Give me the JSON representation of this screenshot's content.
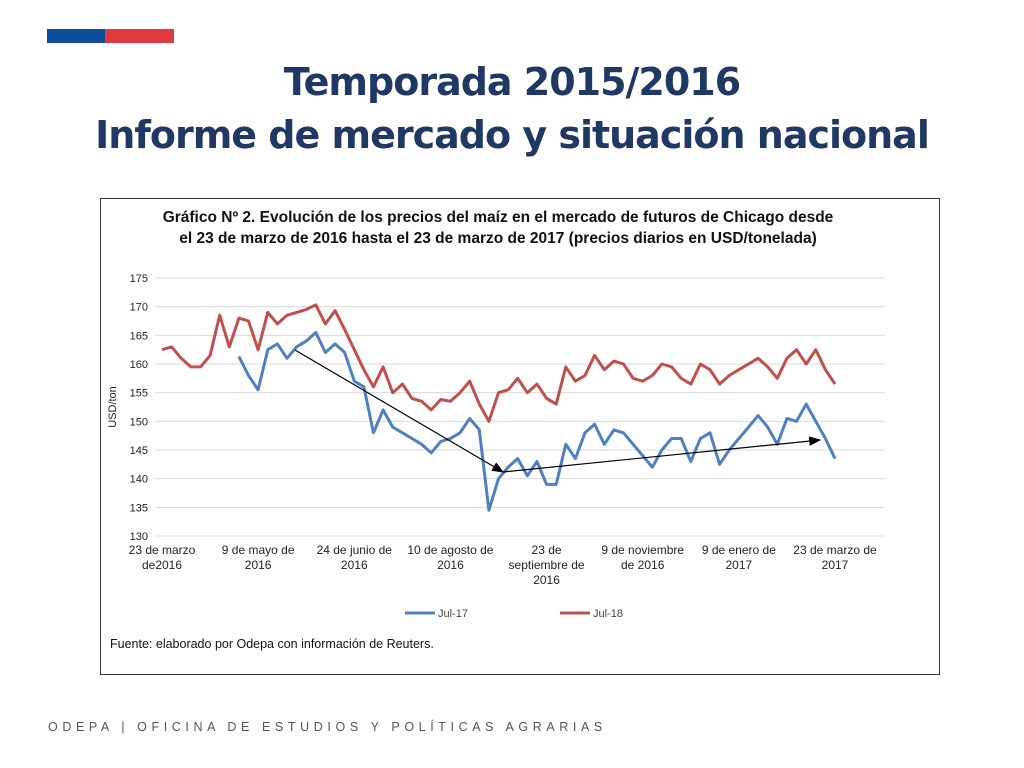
{
  "header": {
    "title_line1": "Temporada 2015/2016",
    "title_line2": "Informe de mercado y situación nacional"
  },
  "chart_data": {
    "type": "line",
    "title": "Gráfico Nº 2. Evolución de los precios del maíz en el mercado de futuros de Chicago desde el 23 de marzo de 2016 hasta el 23 de marzo de 2017 (precios diarios en USD/tonelada)",
    "y_label": "USD/ton",
    "categories": [
      "23 de marzo de2016",
      null,
      null,
      null,
      null,
      null,
      null,
      null,
      null,
      null,
      "9 de mayo de 2016",
      null,
      null,
      null,
      null,
      null,
      null,
      null,
      null,
      null,
      "24 de junio de 2016",
      null,
      null,
      null,
      null,
      null,
      null,
      null,
      null,
      null,
      "10 de agosto de 2016",
      null,
      null,
      null,
      null,
      null,
      null,
      null,
      null,
      null,
      "23 de septiembre de 2016",
      null,
      null,
      null,
      null,
      null,
      null,
      null,
      null,
      null,
      "9 de noviembre de 2016",
      null,
      null,
      null,
      null,
      null,
      null,
      null,
      null,
      null,
      "9 de enero de 2017",
      null,
      null,
      null,
      null,
      null,
      null,
      null,
      null,
      null,
      "23 de marzo de 2017"
    ],
    "series": [
      {
        "name": "Jul-17",
        "color": "#4f81bd",
        "values": [
          null,
          null,
          null,
          null,
          null,
          null,
          null,
          null,
          161.3,
          158,
          155.5,
          162.5,
          163.5,
          161,
          163,
          164,
          165.5,
          162,
          163.5,
          162,
          157,
          156,
          148,
          152,
          149,
          148,
          147,
          146,
          144.5,
          146.5,
          147,
          148,
          150.5,
          148.5,
          134.5,
          140,
          142,
          143.5,
          140.5,
          143,
          139,
          139,
          146,
          143.5,
          148,
          149.5,
          146,
          148.5,
          148,
          146,
          144,
          142,
          145,
          147,
          147,
          143,
          147,
          148,
          142.5,
          145,
          147,
          149,
          151,
          149,
          146,
          150.5,
          150,
          153,
          150,
          147,
          143.5
        ]
      },
      {
        "name": "Jul-18",
        "color": "#c0504d",
        "values": [
          162.5,
          163,
          161,
          159.5,
          159.5,
          161.5,
          168.5,
          163,
          168,
          167.5,
          162.5,
          169,
          167,
          168.5,
          169,
          169.5,
          170.3,
          167,
          169.3,
          166,
          162.5,
          159,
          156,
          159.5,
          155,
          156.5,
          154,
          153.5,
          152,
          153.8,
          153.5,
          155,
          157,
          153,
          150,
          155,
          155.5,
          157.5,
          155,
          156.5,
          154,
          153,
          159.5,
          157,
          158,
          161.5,
          159,
          160.5,
          160,
          157.5,
          157,
          158,
          160,
          159.5,
          157.5,
          156.5,
          160,
          159,
          156.5,
          158,
          159,
          160,
          161,
          159.5,
          157.5,
          161,
          162.5,
          160,
          162.5,
          159,
          156.5
        ]
      }
    ],
    "ylim": [
      130,
      175
    ],
    "yticks": [
      130,
      135,
      140,
      145,
      150,
      155,
      160,
      165,
      170,
      175
    ],
    "grid": true,
    "legend": "bottom",
    "source": "Fuente: elaborado por Odepa con información de Reuters."
  },
  "footer": "ODEPA | OFICINA DE ESTUDIOS Y POLÍTICAS AGRARIAS"
}
